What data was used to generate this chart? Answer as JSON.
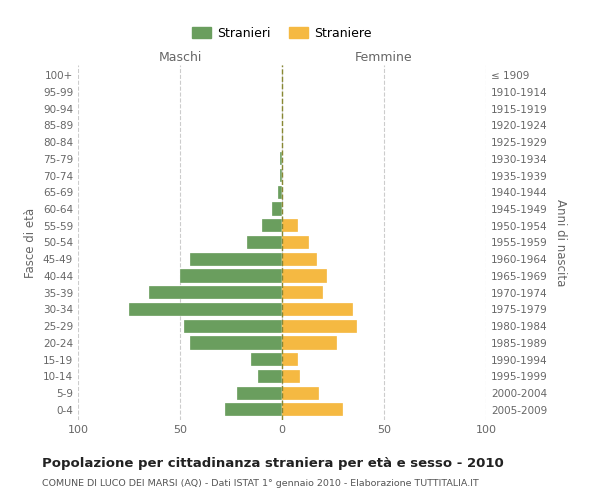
{
  "age_groups": [
    "0-4",
    "5-9",
    "10-14",
    "15-19",
    "20-24",
    "25-29",
    "30-34",
    "35-39",
    "40-44",
    "45-49",
    "50-54",
    "55-59",
    "60-64",
    "65-69",
    "70-74",
    "75-79",
    "80-84",
    "85-89",
    "90-94",
    "95-99",
    "100+"
  ],
  "birth_years": [
    "2005-2009",
    "2000-2004",
    "1995-1999",
    "1990-1994",
    "1985-1989",
    "1980-1984",
    "1975-1979",
    "1970-1974",
    "1965-1969",
    "1960-1964",
    "1955-1959",
    "1950-1954",
    "1945-1949",
    "1940-1944",
    "1935-1939",
    "1930-1934",
    "1925-1929",
    "1920-1924",
    "1915-1919",
    "1910-1914",
    "≤ 1909"
  ],
  "males": [
    28,
    22,
    12,
    15,
    45,
    48,
    75,
    65,
    50,
    45,
    17,
    10,
    5,
    2,
    1,
    1,
    0,
    0,
    0,
    0,
    0
  ],
  "females": [
    30,
    18,
    9,
    8,
    27,
    37,
    35,
    20,
    22,
    17,
    13,
    8,
    0,
    0,
    0,
    0,
    0,
    0,
    0,
    0,
    0
  ],
  "male_color": "#6a9e5e",
  "female_color": "#f5b942",
  "center_line_color": "#888833",
  "grid_color": "#cccccc",
  "bg_color": "#ffffff",
  "title": "Popolazione per cittadinanza straniera per età e sesso - 2010",
  "subtitle": "COMUNE DI LUCO DEI MARSI (AQ) - Dati ISTAT 1° gennaio 2010 - Elaborazione TUTTITALIA.IT",
  "ylabel_left": "Fasce di età",
  "ylabel_right": "Anni di nascita",
  "xlabel_left": "Maschi",
  "xlabel_right": "Femmine",
  "legend_male": "Stranieri",
  "legend_female": "Straniere",
  "xlim": 100
}
